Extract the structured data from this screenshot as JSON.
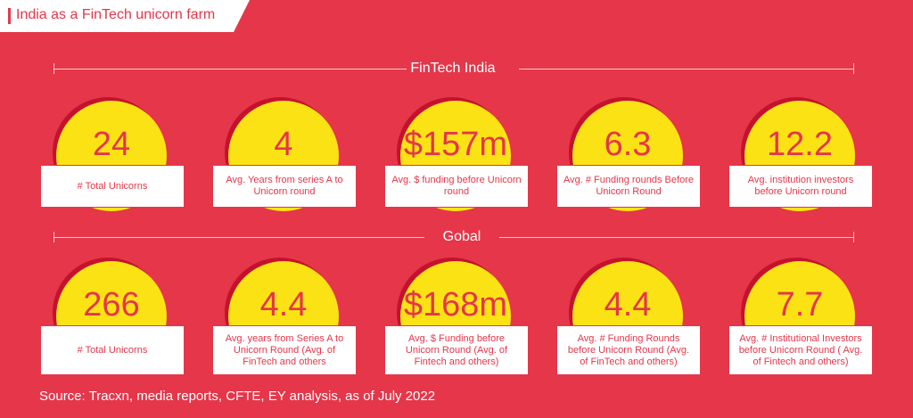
{
  "title": "India as a FinTech unicorn farm",
  "sections": [
    {
      "label": "FinTech India",
      "cards": [
        {
          "value": "24",
          "caption": "# Total Unicorns"
        },
        {
          "value": "4",
          "caption": "Avg. Years from series A to Unicorn round"
        },
        {
          "value": "$157m",
          "caption": "Avg. $ funding before Unicorn round"
        },
        {
          "value": "6.3",
          "caption": "Avg. # Funding rounds Before Unicorn Round"
        },
        {
          "value": "12.2",
          "caption": "Avg. institution investors before Unicorn round"
        }
      ]
    },
    {
      "label": "Gobal",
      "cards": [
        {
          "value": "266",
          "caption": "# Total Unicorns"
        },
        {
          "value": "4.4",
          "caption": "Avg. years from Series A to Unicorn Round (Avg. of FinTech and others"
        },
        {
          "value": "$168m",
          "caption": "Avg. $ Funding before Unicorn Round (Avg. of Fintech and others)"
        },
        {
          "value": "4.4",
          "caption": "Avg. # Funding Rounds before Unicorn Round (Avg. of FinTech and others)"
        },
        {
          "value": "7.7",
          "caption": "Avg. # Institutional Investors before Unicorn Round ( Avg. of Fintech and others)"
        }
      ]
    }
  ],
  "source": "Source: Tracxn, media reports, CFTE, EY analysis, as of July 2022",
  "colors": {
    "background": "#e5364a",
    "circle": "#fbe215",
    "shadow": "#c4122c",
    "box": "#ffffff"
  }
}
